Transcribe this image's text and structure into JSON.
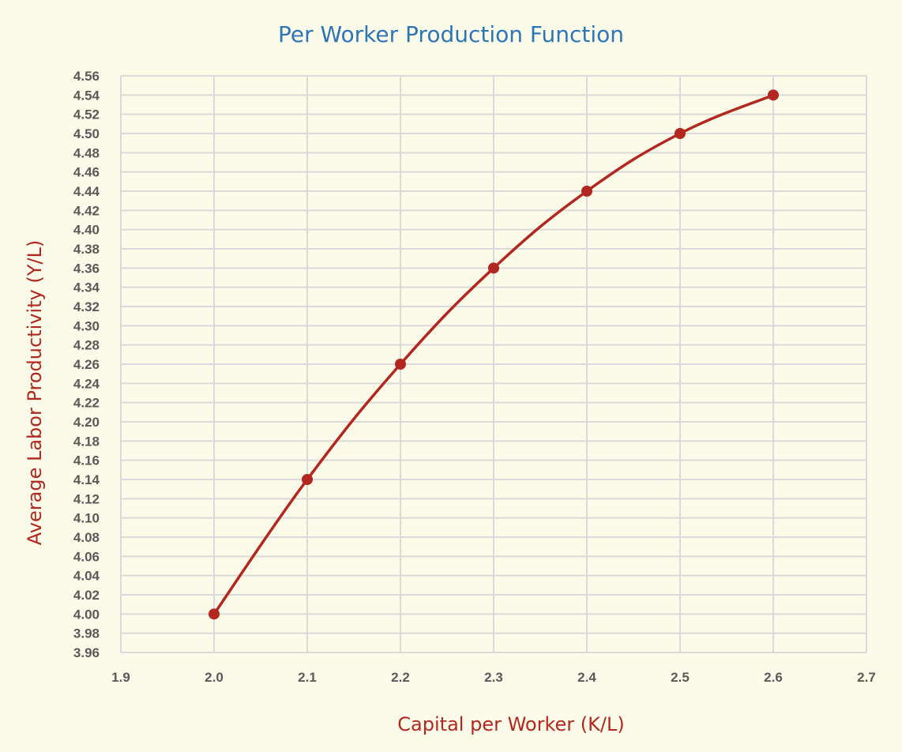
{
  "chart_data": {
    "type": "scatter",
    "title": "Per Worker Production Function",
    "xlabel": "Capital per Worker (K/L)",
    "ylabel": "Average Labor Productivity (Y/L)",
    "xlim": [
      1.9,
      2.7
    ],
    "ylim": [
      3.96,
      4.56
    ],
    "x_ticks": [
      "1.9",
      "2.0",
      "2.1",
      "2.2",
      "2.3",
      "2.4",
      "2.5",
      "2.6",
      "2.7"
    ],
    "y_ticks": [
      "4.56",
      "4.54",
      "4.52",
      "4.50",
      "4.48",
      "4.46",
      "4.44",
      "4.42",
      "4.40",
      "4.38",
      "4.36",
      "4.34",
      "4.32",
      "4.30",
      "4.28",
      "4.26",
      "4.24",
      "4.22",
      "4.20",
      "4.18",
      "4.16",
      "4.14",
      "4.12",
      "4.10",
      "4.08",
      "4.06",
      "4.04",
      "4.02",
      "4.00",
      "3.98",
      "3.96"
    ],
    "grid": true,
    "smooth_line": true,
    "series": [
      {
        "x": [
          2.0,
          2.1,
          2.2,
          2.3,
          2.4,
          2.5,
          2.6
        ],
        "y": [
          4.0,
          4.14,
          4.26,
          4.36,
          4.44,
          4.5,
          4.54
        ],
        "color": "#b2271f"
      }
    ],
    "colors": {
      "background": "#fcfbe9",
      "title": "#2e75b6",
      "axis_title": "#b2271f",
      "grid": "#d9d9d9",
      "tick_label": "#595959"
    }
  }
}
